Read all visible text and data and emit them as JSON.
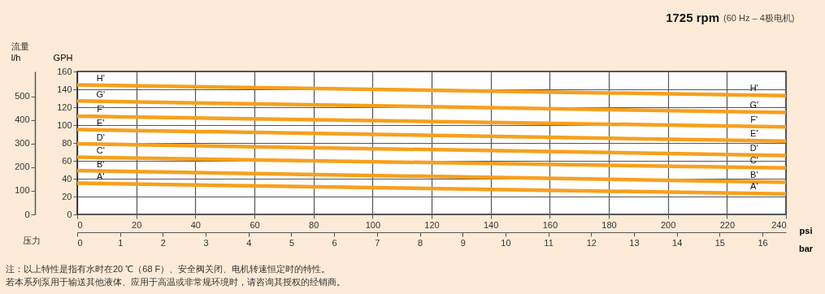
{
  "chart_data": {
    "type": "line",
    "title": "1725 rpm",
    "subtitle": "(60 Hz – 4极电机)",
    "xlabel": "psi",
    "ylabel": "GPH",
    "y2label": "l/h",
    "x2label": "bar",
    "annotations": [
      "流量",
      "压力",
      "注：以上特性是指有水时在20 ℃（68 F）、安全阀关闭、电机转速恒定时的特性。",
      "若本系列泵用于输送其他液体、应用于高温或非常规环境时，请咨询其授权的经销商。"
    ],
    "x": [
      0,
      240
    ],
    "series": [
      {
        "name": "H'",
        "color": "#f7a01e",
        "values": [
          145,
          133
        ]
      },
      {
        "name": "G'",
        "color": "#f7a01e",
        "values": [
          127,
          114
        ]
      },
      {
        "name": "F'",
        "color": "#f7a01e",
        "values": [
          110,
          98
        ]
      },
      {
        "name": "E'",
        "color": "#f7a01e",
        "values": [
          95,
          82
        ]
      },
      {
        "name": "D'",
        "color": "#f7a01e",
        "values": [
          79,
          66
        ]
      },
      {
        "name": "C'",
        "color": "#f7a01e",
        "values": [
          64,
          52
        ]
      },
      {
        "name": "B'",
        "color": "#f7a01e",
        "values": [
          49,
          36
        ]
      },
      {
        "name": "A'",
        "color": "#f7a01e",
        "values": [
          35,
          23
        ]
      }
    ],
    "xlim": [
      0,
      240
    ],
    "xticks": [
      0,
      20,
      40,
      60,
      80,
      100,
      120,
      140,
      160,
      180,
      200,
      220,
      240
    ],
    "ylim": [
      0,
      160
    ],
    "yticks": [
      0,
      20,
      40,
      60,
      80,
      100,
      120,
      140,
      160
    ],
    "y2lim": [
      0,
      605.6
    ],
    "y2ticks": [
      0,
      100,
      200,
      300,
      400,
      500
    ],
    "x2lim": [
      0,
      16.55
    ],
    "x2ticks": [
      0,
      1,
      2,
      3,
      4,
      5,
      6,
      7,
      8,
      9,
      10,
      11,
      12,
      13,
      14,
      15,
      16
    ],
    "grid": true,
    "legend": false,
    "marker": "none",
    "line_style": "solid"
  }
}
